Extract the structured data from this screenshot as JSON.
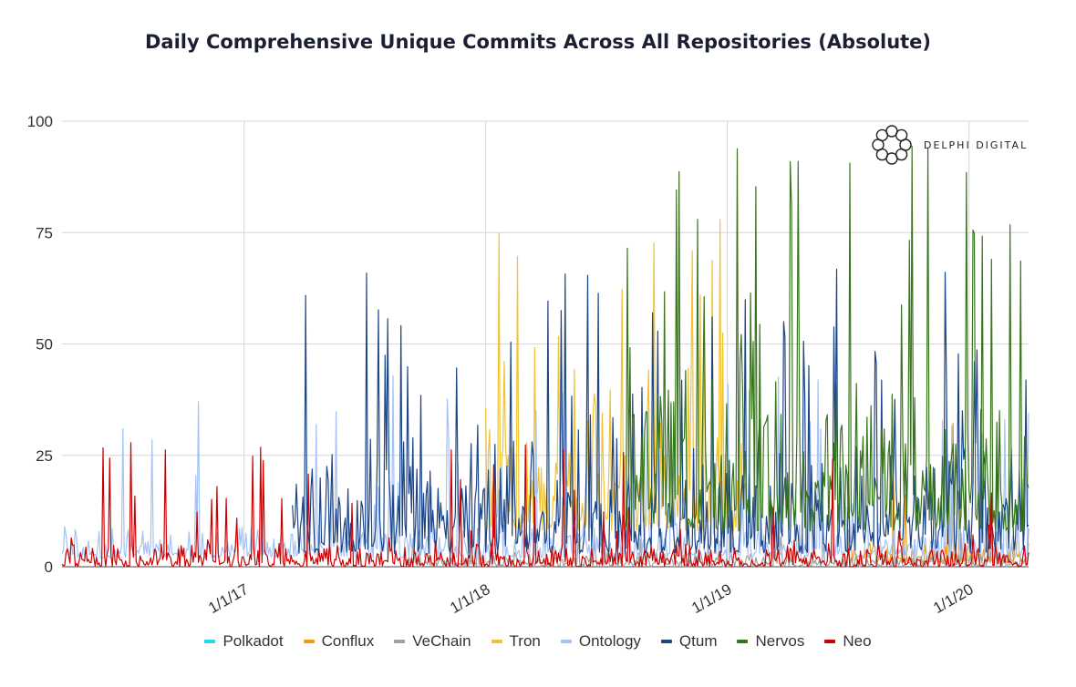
{
  "chart_data": {
    "type": "line",
    "title": "Daily Comprehensive Unique Commits Across All Repositories (Absolute)",
    "xlabel": "",
    "ylabel": "",
    "x_range": [
      "2016-04-01",
      "2020-03-31"
    ],
    "ylim": [
      0,
      100
    ],
    "y_ticks": [
      0,
      25,
      50,
      75,
      100
    ],
    "x_ticks": [
      "1/1/17",
      "1/1/18",
      "1/1/19",
      "1/1/20"
    ],
    "grid": true,
    "legend_position": "bottom",
    "series": [
      {
        "name": "Polkadot",
        "color": "#26d7e8",
        "start": "2016-04-01",
        "end": "2020-03-31",
        "base": 0,
        "amp": 0,
        "peak": 0,
        "spike": 0
      },
      {
        "name": "Conflux",
        "color": "#f39c12",
        "start": "2019-07-01",
        "end": "2020-03-31",
        "base": 1,
        "amp": 6,
        "peak": 38,
        "spike": 0.05
      },
      {
        "name": "VeChain",
        "color": "#9e9e9e",
        "start": "2017-09-01",
        "end": "2020-03-31",
        "base": 0,
        "amp": 4,
        "peak": 10,
        "spike": 0.05
      },
      {
        "name": "Tron",
        "color": "#f1c232",
        "start": "2018-01-01",
        "end": "2019-01-31",
        "base": 8,
        "amp": 40,
        "peak": 85,
        "spike": 0.12
      },
      {
        "name": "Ontology",
        "color": "#a4c2f4",
        "start": "2016-04-01",
        "end": "2020-03-31",
        "base": 2,
        "amp": 9,
        "peak": 43,
        "spike": 0.08
      },
      {
        "name": "Qtum",
        "color": "#1c4587",
        "start": "2017-03-15",
        "end": "2020-03-31",
        "base": 3,
        "amp": 28,
        "peak": 67,
        "spike": 0.1
      },
      {
        "name": "Nervos",
        "color": "#38761d",
        "start": "2018-08-01",
        "end": "2020-03-31",
        "base": 8,
        "amp": 38,
        "peak": 95,
        "spike": 0.12
      },
      {
        "name": "Neo",
        "color": "#cc0000",
        "start": "2016-04-01",
        "end": "2020-03-31",
        "base": 0,
        "amp": 6,
        "peak": 28,
        "spike": 0.06
      }
    ]
  },
  "brand": {
    "name": "DELPHI DIGITAL"
  }
}
